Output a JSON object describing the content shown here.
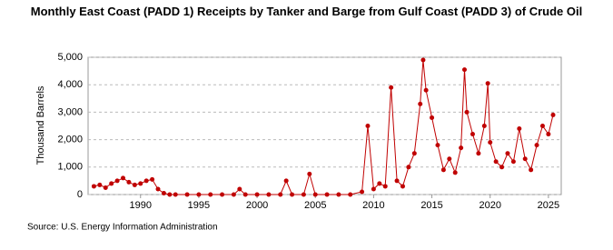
{
  "chart_data": {
    "type": "line",
    "title": "Monthly East Coast (PADD 1) Receipts by Tanker and Barge from Gulf Coast (PADD 3) of Crude Oil",
    "y_label": "Thousand Barrels",
    "source": "Source: U.S. Energy Information Administration",
    "color": "#c00000",
    "grid": true,
    "xlim": [
      1985.5,
      2026.1
    ],
    "xticks": [
      1990,
      1995,
      2000,
      2005,
      2010,
      2015,
      2020,
      2025
    ],
    "ylim": [
      0,
      5000
    ],
    "yticks": [
      0,
      {
        "value": 1000,
        "label": "1,000"
      },
      {
        "value": 2000,
        "label": "2,000"
      },
      {
        "value": 3000,
        "label": "3,000"
      },
      {
        "value": 4000,
        "label": "4,000"
      },
      {
        "value": 5000,
        "label": "5,000"
      }
    ],
    "x": [
      1986,
      1986.5,
      1987,
      1987.5,
      1988,
      1988.5,
      1989,
      1989.5,
      1990,
      1990.5,
      1991,
      1991.5,
      1992,
      1992.5,
      1993,
      1994,
      1995,
      1996,
      1997,
      1998,
      1998.5,
      1999,
      2000,
      2001,
      2002,
      2002.5,
      2003,
      2004,
      2004.5,
      2005,
      2006,
      2007,
      2008,
      2009,
      2009.5,
      2010,
      2010.5,
      2011,
      2011.5,
      2012,
      2012.5,
      2013,
      2013.5,
      2014,
      2014.25,
      2014.5,
      2015,
      2015.5,
      2016,
      2016.5,
      2017,
      2017.5,
      2017.8,
      2018,
      2018.5,
      2019,
      2019.5,
      2019.8,
      2020,
      2020.5,
      2021,
      2021.5,
      2022,
      2022.5,
      2023,
      2023.5,
      2024,
      2024.5,
      2025,
      2025.4
    ],
    "values": [
      300,
      350,
      250,
      400,
      500,
      600,
      450,
      350,
      400,
      500,
      550,
      200,
      50,
      0,
      0,
      0,
      0,
      0,
      0,
      0,
      200,
      0,
      0,
      0,
      0,
      500,
      0,
      0,
      750,
      0,
      0,
      0,
      0,
      100,
      2500,
      200,
      400,
      300,
      3900,
      500,
      300,
      1000,
      1500,
      3300,
      4900,
      3800,
      2800,
      1800,
      900,
      1300,
      800,
      1700,
      4550,
      3000,
      2200,
      1500,
      2500,
      4050,
      1900,
      1200,
      1000,
      1500,
      1200,
      2400,
      1300,
      900,
      1800,
      2500,
      2200,
      2900
    ]
  }
}
